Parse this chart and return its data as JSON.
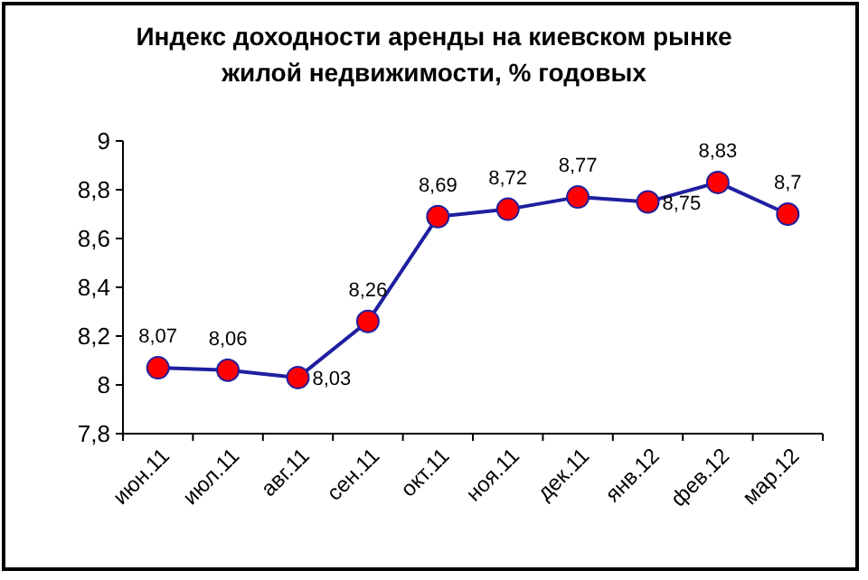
{
  "chart_data": {
    "type": "line",
    "title": "Индекс доходности аренды на киевском рынке\nжилой недвижимости, % годовых",
    "categories": [
      "июн.11",
      "июл.11",
      "авг.11",
      "сен.11",
      "окт.11",
      "ноя.11",
      "дек.11",
      "янв.12",
      "фев.12",
      "мар.12"
    ],
    "series": [
      {
        "color": "#1f1fa0",
        "values": [
          8.07,
          8.06,
          8.03,
          8.26,
          8.69,
          8.72,
          8.77,
          8.75,
          8.83,
          8.7
        ],
        "value_labels": [
          "8,07",
          "8,06",
          "8,03",
          "8,26",
          "8,69",
          "8,72",
          "8,77",
          "8,75",
          "8,83",
          "8,7"
        ]
      }
    ],
    "ylim": [
      7.8,
      9
    ],
    "yticks": [
      {
        "value": 7.8,
        "label": "7,8"
      },
      8,
      {
        "value": 8.2,
        "label": "8,2"
      },
      {
        "value": 8.4,
        "label": "8,4"
      },
      {
        "value": 8.6,
        "label": "8,6"
      },
      {
        "value": 8.8,
        "label": "8,8"
      },
      9
    ],
    "marker": "circle",
    "line_style": "solid",
    "grid": false
  }
}
